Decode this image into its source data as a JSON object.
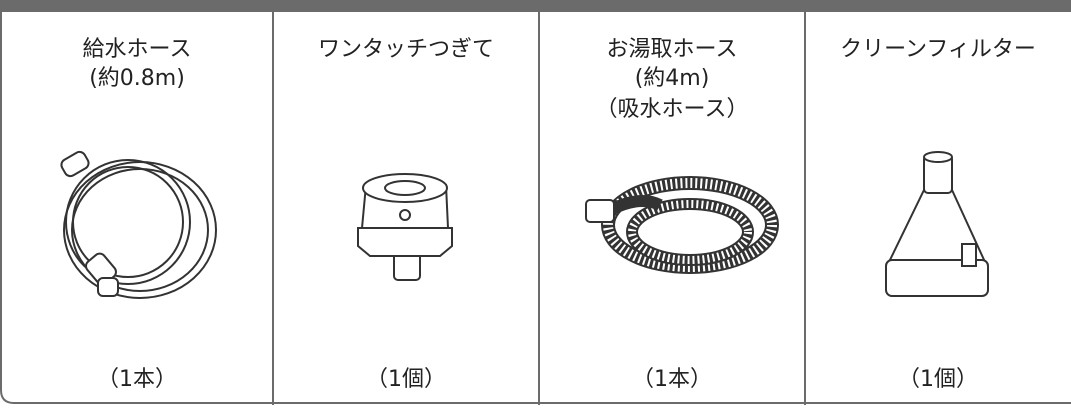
{
  "items": [
    {
      "name": [
        "給水ホース",
        "(約0.8m)"
      ],
      "quantity": "（1本）"
    },
    {
      "name": [
        "ワンタッチつぎて"
      ],
      "quantity": "（1個）"
    },
    {
      "name": [
        "お湯取ホース",
        "(約4m)",
        "（吸水ホース）"
      ],
      "quantity": "（1本）"
    },
    {
      "name": [
        "クリーンフィルター"
      ],
      "quantity": "（1個）"
    }
  ]
}
